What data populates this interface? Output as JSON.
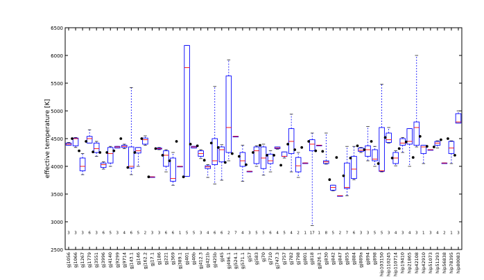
{
  "chart_data": {
    "type": "boxplot",
    "title": "",
    "xlabel": "",
    "ylabel": "effective temperature [K]",
    "ylim": [
      2500,
      6500
    ],
    "yticks": [
      2500,
      3000,
      3500,
      4000,
      4500,
      5000,
      5500,
      6000,
      6500
    ],
    "grid": false,
    "colors": {
      "box": "#0000ff",
      "median": "#ff0000",
      "mean": "#000000",
      "count_text": "#000000"
    },
    "categories": [
      "gj1056",
      "gj1066",
      "gj1267",
      "gj1779",
      "gj3551",
      "gj3996",
      "gj4140",
      "gj9299",
      "gj9714",
      "gj143.1",
      "gj146",
      "gj162.2",
      "gj17.1",
      "gj186",
      "gj221",
      "gj369",
      "gj389.1",
      "gj401",
      "gj40b",
      "gj412.3",
      "gj421b",
      "gj425b",
      "gj45",
      "gj496.1",
      "gj524.1",
      "gj571.1",
      "gj57",
      "gj583",
      "gj70",
      "gj710",
      "gj747.3",
      "gj757",
      "gj782",
      "gj798",
      "gj801",
      "gj818",
      "gj826.1",
      "gj830",
      "gj842",
      "gj847",
      "gj855",
      "gj884",
      "gj889a",
      "gj894",
      "gj898",
      "hip103150",
      "hip110245",
      "hip110714",
      "hip19410",
      "hip21865",
      "hip42108",
      "hip42910",
      "hip51073",
      "hip51293",
      "hip56838",
      "hip78395",
      "hip80083"
    ],
    "counts": [
      3,
      3,
      3,
      6,
      3,
      6,
      5,
      3,
      4,
      6,
      5,
      2,
      3,
      3,
      6,
      6,
      1,
      5,
      5,
      3,
      4,
      6,
      6,
      2,
      7,
      4,
      3,
      5,
      5,
      6,
      4,
      5,
      4,
      2,
      1,
      17,
      1,
      8,
      5,
      2,
      7,
      6,
      3,
      3,
      5,
      5,
      3,
      4,
      3,
      4,
      3,
      1,
      3,
      4,
      2,
      1,
      3
    ],
    "boxes": [
      {
        "whislo": 4380,
        "q1": 4380,
        "med": 4400,
        "q3": 4420,
        "whishi": 4430,
        "mean": null
      },
      {
        "whislo": 4340,
        "q1": 4370,
        "med": 4500,
        "q3": 4510,
        "whishi": 4520,
        "mean": 4500
      },
      {
        "whislo": 3850,
        "q1": 3920,
        "med": 4000,
        "q3": 4150,
        "whishi": 4230,
        "mean": 4280
      },
      {
        "whislo": 4420,
        "q1": 4420,
        "med": 4500,
        "q3": 4540,
        "whishi": 4660,
        "mean": 4450
      },
      {
        "whislo": 4180,
        "q1": 4250,
        "med": 4320,
        "q3": 4420,
        "whishi": 4450,
        "mean": 4260
      },
      {
        "whislo": 3950,
        "q1": 3980,
        "med": 4030,
        "q3": 4060,
        "whishi": 4080,
        "mean": 4250
      },
      {
        "whislo": 4000,
        "q1": 4060,
        "med": 4230,
        "q3": 4340,
        "whishi": 4360,
        "mean": 4250
      },
      {
        "whislo": 4330,
        "q1": 4330,
        "med": 4350,
        "q3": 4360,
        "whishi": 4360,
        "mean": 4280
      },
      {
        "whislo": 4320,
        "q1": 4340,
        "med": 4360,
        "q3": 4380,
        "whishi": 4400,
        "mean": 4500
      },
      {
        "whislo": 3850,
        "q1": 3970,
        "med": 4000,
        "q3": 4350,
        "whishi": 5420,
        "mean": 3980
      },
      {
        "whislo": 4000,
        "q1": 4240,
        "med": 4280,
        "q3": 4340,
        "whishi": 4340,
        "mean": 4250
      },
      {
        "whislo": 4380,
        "q1": 4400,
        "med": 4480,
        "q3": 4510,
        "whishi": 4550,
        "mean": 4500
      },
      {
        "whislo": 3810,
        "q1": 3810,
        "med": 3810,
        "q3": 3810,
        "whishi": 3810,
        "mean": 3810
      },
      {
        "whislo": 4300,
        "q1": 4310,
        "med": 4320,
        "q3": 4330,
        "whishi": 4340,
        "mean": 4320
      },
      {
        "whislo": 3900,
        "q1": 4000,
        "med": 4200,
        "q3": 4280,
        "whishi": 4300,
        "mean": 4200
      },
      {
        "whislo": 3660,
        "q1": 3730,
        "med": 3780,
        "q3": 4150,
        "whishi": 4250,
        "mean": 4100
      },
      {
        "whislo": 4000,
        "q1": 4000,
        "med": 4000,
        "q3": 4000,
        "whishi": 4000,
        "mean": 4450
      },
      {
        "whislo": 3820,
        "q1": 3820,
        "med": 5780,
        "q3": 6180,
        "whishi": 6180,
        "mean": 3810
      },
      {
        "whislo": 4330,
        "q1": 4330,
        "med": 4350,
        "q3": 4360,
        "whishi": 4360,
        "mean": 4400
      },
      {
        "whislo": 4140,
        "q1": 4180,
        "med": 4230,
        "q3": 4280,
        "whishi": 4300,
        "mean": 4370
      },
      {
        "whislo": 3800,
        "q1": 3960,
        "med": 3990,
        "q3": 4010,
        "whishi": 4030,
        "mean": 4110
      },
      {
        "whislo": 3680,
        "q1": 4030,
        "med": 4100,
        "q3": 4500,
        "whishi": 5440,
        "mean": 4420
      },
      {
        "whislo": 3750,
        "q1": 4080,
        "med": 4300,
        "q3": 4350,
        "whishi": 4390,
        "mean": 4340
      },
      {
        "whislo": 4100,
        "q1": 4250,
        "med": 4700,
        "q3": 5630,
        "whishi": 5920,
        "mean": 4070
      },
      {
        "whislo": 4540,
        "q1": 4540,
        "med": 4540,
        "q3": 4540,
        "whishi": 4540,
        "mean": 4230
      },
      {
        "whislo": 3730,
        "q1": 4000,
        "med": 4100,
        "q3": 4250,
        "whishi": 4380,
        "mean": 4180
      },
      {
        "whislo": 3900,
        "q1": 3900,
        "med": 3910,
        "q3": 3910,
        "whishi": 3910,
        "mean": 4030
      },
      {
        "whislo": 4000,
        "q1": 4050,
        "med": 4280,
        "q3": 4350,
        "whishi": 4370,
        "mean": 4250
      },
      {
        "whislo": 3840,
        "q1": 3960,
        "med": 4150,
        "q3": 4350,
        "whishi": 4400,
        "mean": 4380
      },
      {
        "whislo": 3900,
        "q1": 4050,
        "med": 4100,
        "q3": 4220,
        "whishi": 4280,
        "mean": 4200
      },
      {
        "whislo": 4310,
        "q1": 4320,
        "med": 4330,
        "q3": 4350,
        "whishi": 4350,
        "mean": 4200
      },
      {
        "whislo": 4150,
        "q1": 4180,
        "med": 4180,
        "q3": 4260,
        "whishi": 4260,
        "mean": 4020
      },
      {
        "whislo": 3900,
        "q1": 4230,
        "med": 4450,
        "q3": 4680,
        "whishi": 4940,
        "mean": 4400
      },
      {
        "whislo": 3800,
        "q1": 3900,
        "med": 4010,
        "q3": 4160,
        "whishi": 4250,
        "mean": 4300
      },
      {
        "whislo": 4060,
        "q1": 4060,
        "med": 4060,
        "q3": 4060,
        "whishi": 4060,
        "mean": 4340
      },
      {
        "whislo": 2930,
        "q1": 4280,
        "med": 4400,
        "q3": 4480,
        "whishi": 4600,
        "mean": 4450
      },
      {
        "whislo": 4380,
        "q1": 4380,
        "med": 4380,
        "q3": 4380,
        "whishi": 4380,
        "mean": 4280
      },
      {
        "whislo": 4040,
        "q1": 4050,
        "med": 4080,
        "q3": 4100,
        "whishi": 4600,
        "mean": 4270
      },
      {
        "whislo": 3560,
        "q1": 3570,
        "med": 3620,
        "q3": 3660,
        "whishi": 3660,
        "mean": 3760
      },
      {
        "whislo": 3470,
        "q1": 3470,
        "med": 3470,
        "q3": 3470,
        "whishi": 3470,
        "mean": 4160
      },
      {
        "whislo": 3470,
        "q1": 3600,
        "med": 3620,
        "q3": 4060,
        "whishi": 4360,
        "mean": 3830
      },
      {
        "whislo": 3760,
        "q1": 3780,
        "med": 3950,
        "q3": 4180,
        "whishi": 4360,
        "mean": 4150
      },
      {
        "whislo": 4250,
        "q1": 4270,
        "med": 4290,
        "q3": 4330,
        "whishi": 4340,
        "mean": 4370
      },
      {
        "whislo": 4100,
        "q1": 4180,
        "med": 4300,
        "q3": 4370,
        "whishi": 4720,
        "mean": 4300
      },
      {
        "whislo": 4000,
        "q1": 4100,
        "med": 4130,
        "q3": 4300,
        "whishi": 4360,
        "mean": 4450
      },
      {
        "whislo": 3900,
        "q1": 3910,
        "med": 3920,
        "q3": 4700,
        "whishi": 5480,
        "mean": 4050
      },
      {
        "whislo": 4420,
        "q1": 4430,
        "med": 4480,
        "q3": 4600,
        "whishi": 4700,
        "mean": 4520
      },
      {
        "whislo": 4010,
        "q1": 4050,
        "med": 4150,
        "q3": 4250,
        "whishi": 4280,
        "mean": 4150
      },
      {
        "whislo": 4250,
        "q1": 4380,
        "med": 4420,
        "q3": 4500,
        "whishi": 4520,
        "mean": 4320
      },
      {
        "whislo": 4000,
        "q1": 4400,
        "med": 4450,
        "q3": 4680,
        "whishi": 4680,
        "mean": 4440
      },
      {
        "whislo": 4350,
        "q1": 4380,
        "med": 4700,
        "q3": 4800,
        "whishi": 6000,
        "mean": 4160
      },
      {
        "whislo": 4050,
        "q1": 4230,
        "med": 4350,
        "q3": 4380,
        "whishi": 4380,
        "mean": 4540
      },
      {
        "whislo": 4300,
        "q1": 4300,
        "med": 4300,
        "q3": 4300,
        "whishi": 4300,
        "mean": 4360
      },
      {
        "whislo": 4330,
        "q1": 4380,
        "med": 4420,
        "q3": 4450,
        "whishi": 4460,
        "mean": 4350
      },
      {
        "whislo": 4060,
        "q1": 4060,
        "med": 4060,
        "q3": 4060,
        "whishi": 4060,
        "mean": 4480
      },
      {
        "whislo": 4050,
        "q1": 4230,
        "med": 4330,
        "q3": 4450,
        "whishi": 4460,
        "mean": 4500
      },
      {
        "whislo": 4780,
        "q1": 4780,
        "med": 4800,
        "q3": 4950,
        "whishi": 5000,
        "mean": 4200
      }
    ]
  }
}
